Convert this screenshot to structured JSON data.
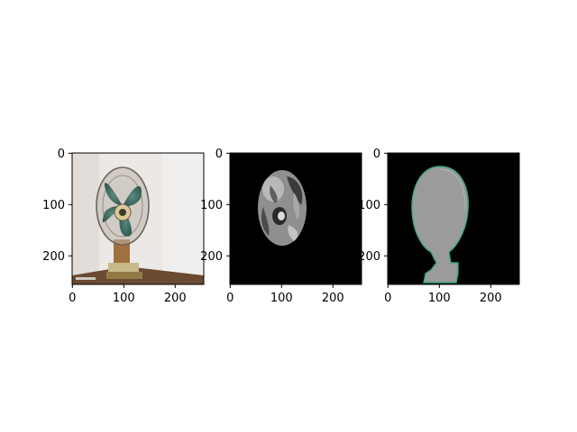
{
  "figure": {
    "panels": [
      {
        "id": "panel-original",
        "content": "original-photo",
        "xticks": [
          "0",
          "100",
          "200"
        ],
        "yticks": [
          "0",
          "100",
          "200"
        ]
      },
      {
        "id": "panel-grayscale-mask",
        "content": "grayscale-segment",
        "xticks": [
          "0",
          "100",
          "200"
        ],
        "yticks": [
          "0",
          "100",
          "200"
        ]
      },
      {
        "id": "panel-silhouette",
        "content": "silhouette-segment",
        "xticks": [
          "0",
          "100",
          "200"
        ],
        "yticks": [
          "0",
          "100",
          "200"
        ]
      }
    ]
  },
  "chart_data": [
    {
      "type": "image",
      "title": "",
      "xlabel": "",
      "ylabel": "",
      "xlim": [
        0,
        256
      ],
      "ylim": [
        256,
        0
      ],
      "xticks": [
        0,
        100,
        200
      ],
      "yticks": [
        0,
        100,
        200
      ],
      "image_description": "color photo of an electric table fan with green blades on a wooden stand against a white wall",
      "colors": {
        "wall": "#ece9e6",
        "blades": "#3f6e63",
        "stand": "#9a6a3a"
      }
    },
    {
      "type": "image",
      "title": "",
      "xlabel": "",
      "ylabel": "",
      "xlim": [
        0,
        256
      ],
      "ylim": [
        256,
        0
      ],
      "xticks": [
        0,
        100,
        200
      ],
      "yticks": [
        0,
        100,
        200
      ],
      "image_description": "grayscale segmented fan head (oval) on black background",
      "colors": {
        "background": "#000000",
        "region": "#9a9a9a"
      }
    },
    {
      "type": "image",
      "title": "",
      "xlabel": "",
      "ylabel": "",
      "xlim": [
        0,
        256
      ],
      "ylim": [
        256,
        0
      ],
      "xticks": [
        0,
        100,
        200
      ],
      "yticks": [
        0,
        100,
        200
      ],
      "image_description": "uniform gray silhouette of fan head and stand with thin green outline on black background",
      "colors": {
        "background": "#000000",
        "silhouette": "#9b9b9b",
        "outline": "#3aa57a"
      }
    }
  ]
}
